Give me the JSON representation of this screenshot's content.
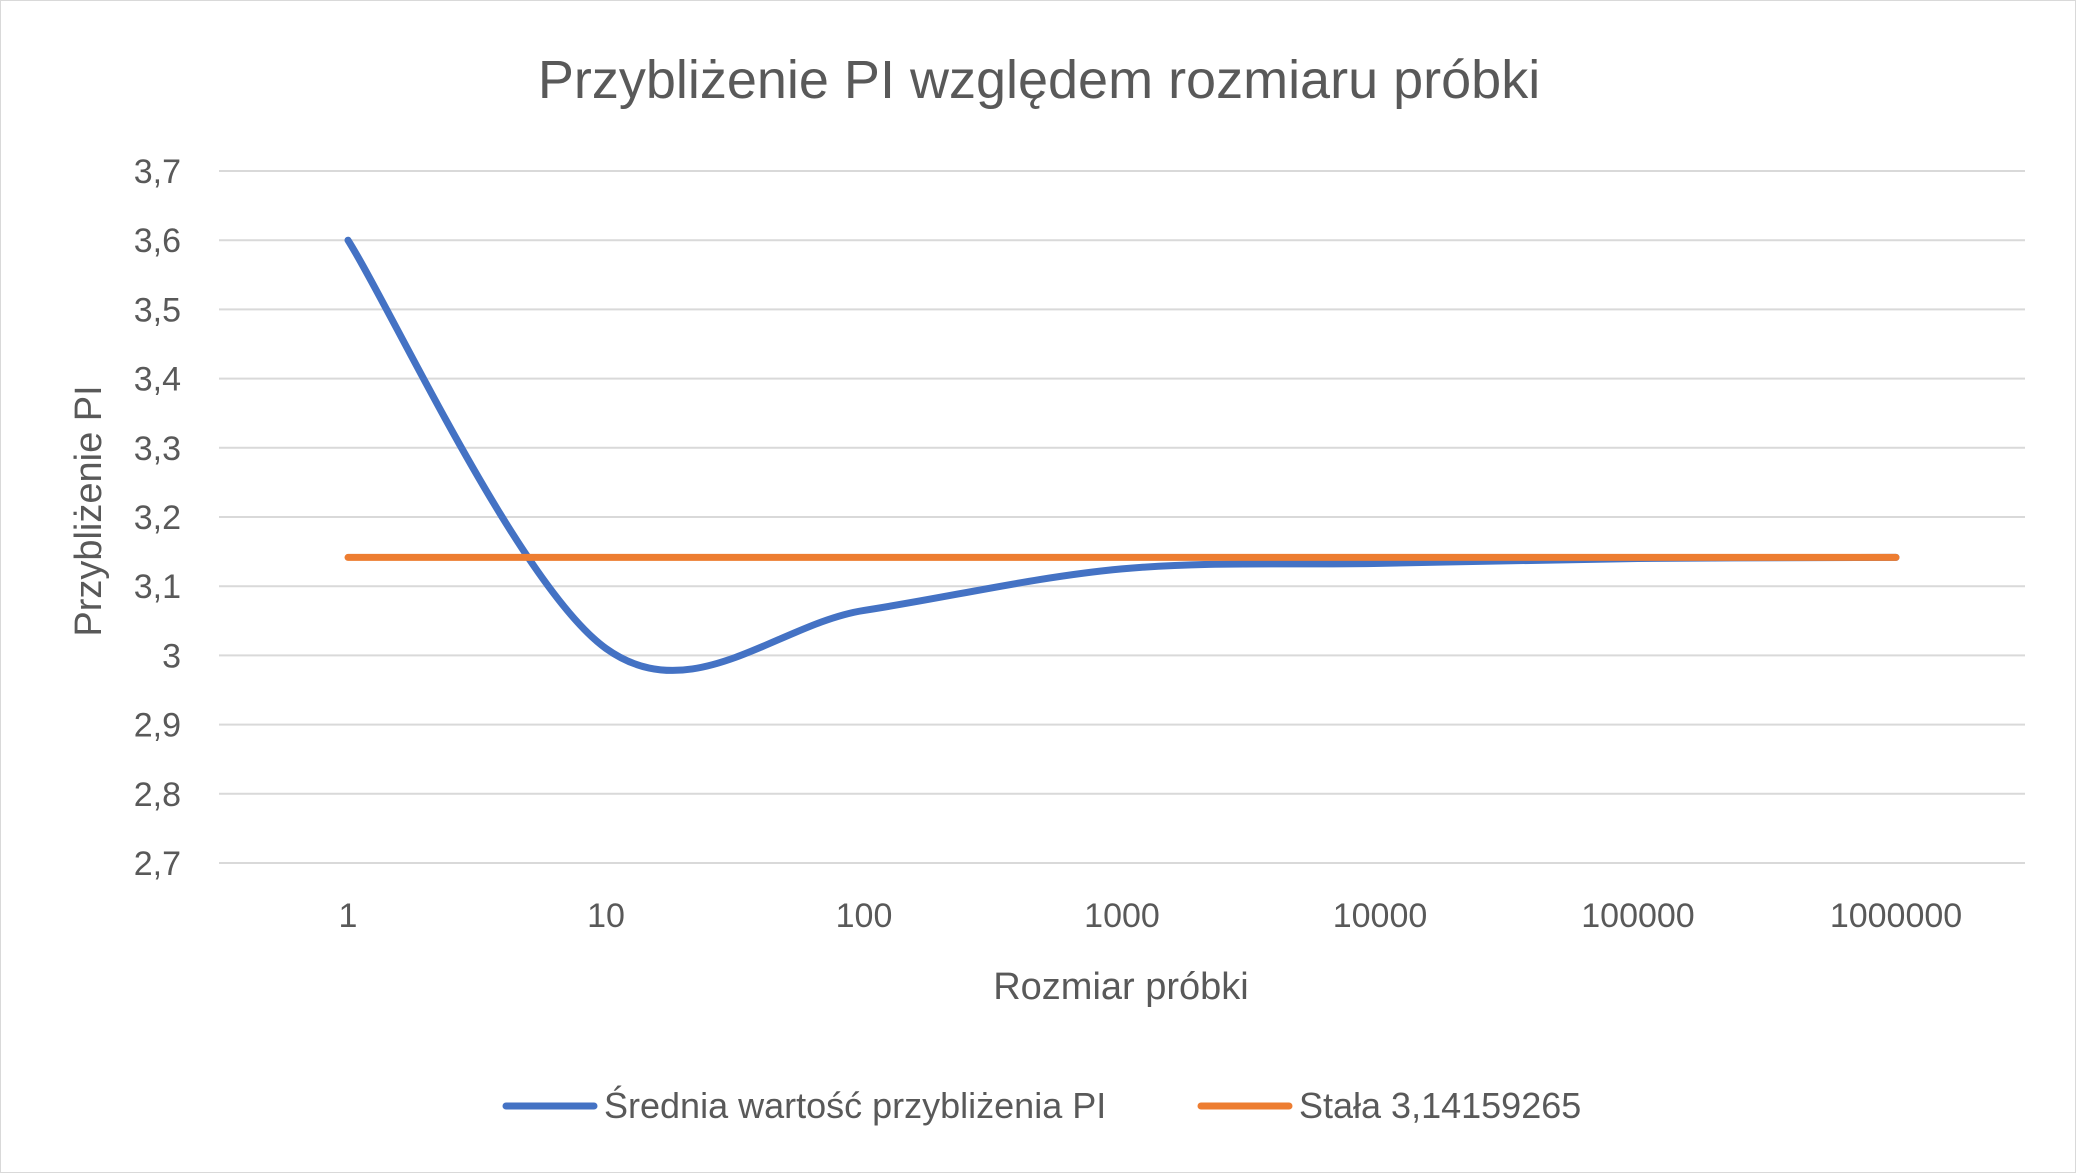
{
  "chart_data": {
    "type": "line",
    "title": "Przybliżenie PI względem rozmiaru próbki",
    "xlabel": "Rozmiar próbki",
    "ylabel": "Przybliżenie PI",
    "categories": [
      "1",
      "10",
      "100",
      "1000",
      "10000",
      "100000",
      "1000000"
    ],
    "y_ticks": [
      "3,7",
      "3,6",
      "3,5",
      "3,4",
      "3,3",
      "3,2",
      "3,1",
      "3",
      "2,9",
      "2,8",
      "2,7"
    ],
    "ylim": [
      2.7,
      3.7
    ],
    "y_step": 0.1,
    "grid": true,
    "smooth": true,
    "legend_position": "bottom",
    "series": [
      {
        "name": "Średnia wartość przybliżenia PI",
        "color": "#4472C4",
        "values": [
          3.6,
          3.01,
          3.065,
          3.125,
          3.133,
          3.14,
          3.1416
        ]
      },
      {
        "name": "Stała 3,14159265",
        "color": "#ED7D31",
        "values": [
          3.14159265,
          3.14159265,
          3.14159265,
          3.14159265,
          3.14159265,
          3.14159265,
          3.14159265
        ]
      }
    ]
  }
}
